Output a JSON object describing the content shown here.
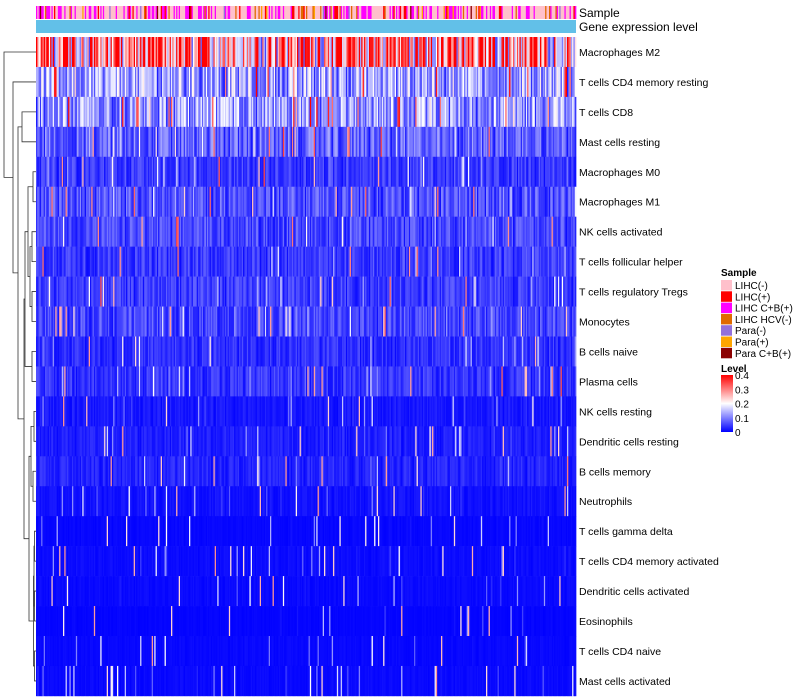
{
  "chart_data": {
    "type": "heatmap",
    "title": "",
    "annotation_tracks": [
      "Sample",
      "Gene expression level"
    ],
    "rows": [
      {
        "label": "Macrophages M2",
        "mean": 0.33
      },
      {
        "label": "T cells CD4 memory resting",
        "mean": 0.14
      },
      {
        "label": "T cells CD8",
        "mean": 0.13
      },
      {
        "label": "Mast cells resting",
        "mean": 0.085
      },
      {
        "label": "Macrophages M0",
        "mean": 0.05
      },
      {
        "label": "Macrophages M1",
        "mean": 0.07
      },
      {
        "label": "NK cells activated",
        "mean": 0.06
      },
      {
        "label": "T cells follicular helper",
        "mean": 0.05
      },
      {
        "label": "T cells regulatory  Tregs",
        "mean": 0.05
      },
      {
        "label": "Monocytes",
        "mean": 0.06
      },
      {
        "label": "B cells naive",
        "mean": 0.04
      },
      {
        "label": "Plasma cells",
        "mean": 0.045
      },
      {
        "label": "NK cells resting",
        "mean": 0.02
      },
      {
        "label": "Dendritic cells resting",
        "mean": 0.025
      },
      {
        "label": "B cells memory",
        "mean": 0.03
      },
      {
        "label": "Neutrophils",
        "mean": 0.015
      },
      {
        "label": "T cells gamma delta",
        "mean": 0.006
      },
      {
        "label": "T cells CD4 memory activated",
        "mean": 0.01
      },
      {
        "label": "Dendritic cells activated",
        "mean": 0.008
      },
      {
        "label": "Eosinophils",
        "mean": 0.004
      },
      {
        "label": "T cells CD4 naive",
        "mean": 0.006
      },
      {
        "label": "Mast cells activated",
        "mean": 0.008
      }
    ],
    "legend_sample": {
      "title": "Sample",
      "entries": [
        {
          "label": "LIHC(-)",
          "color": "#ffc0cb"
        },
        {
          "label": "LIHC(+)",
          "color": "#ff0000"
        },
        {
          "label": "LIHC C+B(+)",
          "color": "#ff00ff"
        },
        {
          "label": "LIHC HCV(-)",
          "color": "#e06a00"
        },
        {
          "label": "Para(-)",
          "color": "#9370db"
        },
        {
          "label": "Para(+)",
          "color": "#ffa500"
        },
        {
          "label": "Para C+B(+)",
          "color": "#8b0000"
        }
      ]
    },
    "legend_level": {
      "title": "Level",
      "range": [
        0,
        0.4
      ],
      "ticks": [
        {
          "value": 0.4,
          "label": "0.4"
        },
        {
          "value": 0.3,
          "label": "0.3"
        },
        {
          "value": 0.2,
          "label": "0.2"
        },
        {
          "value": 0.1,
          "label": "0.1"
        },
        {
          "value": 0,
          "label": "0"
        }
      ],
      "colors": [
        "#0000ff",
        "#ffffff",
        "#ff0000"
      ]
    },
    "gene_expression_color": "#62c0e8",
    "n_samples": 420
  }
}
